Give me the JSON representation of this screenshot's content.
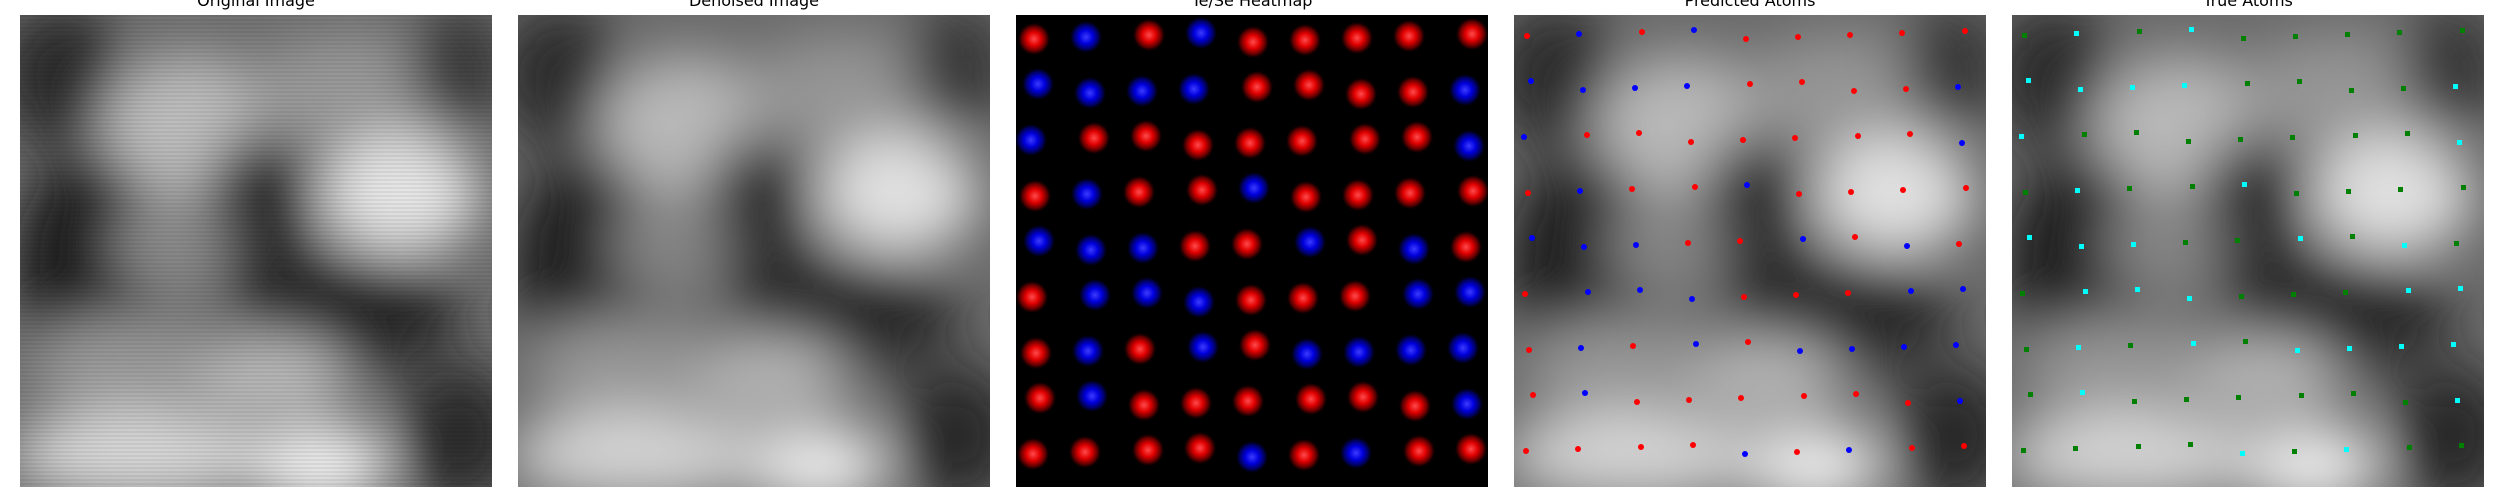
{
  "panels": [
    {
      "title": "Original Image"
    },
    {
      "title": "Denoised Image"
    },
    {
      "title": "Te/Se Heatmap"
    },
    {
      "title": "Predicted Atoms"
    },
    {
      "title": "True Atoms"
    }
  ],
  "colors": {
    "te": "#ff0000",
    "se": "#0000ff",
    "true_te": "#00ffff",
    "true_se": "#008000",
    "heatmap_background": "#000000"
  },
  "legend_semantics": {
    "heatmap": "red = Te, blue = Se",
    "predicted": "red dot / blue dot",
    "true": "cyan square / green square"
  }
}
